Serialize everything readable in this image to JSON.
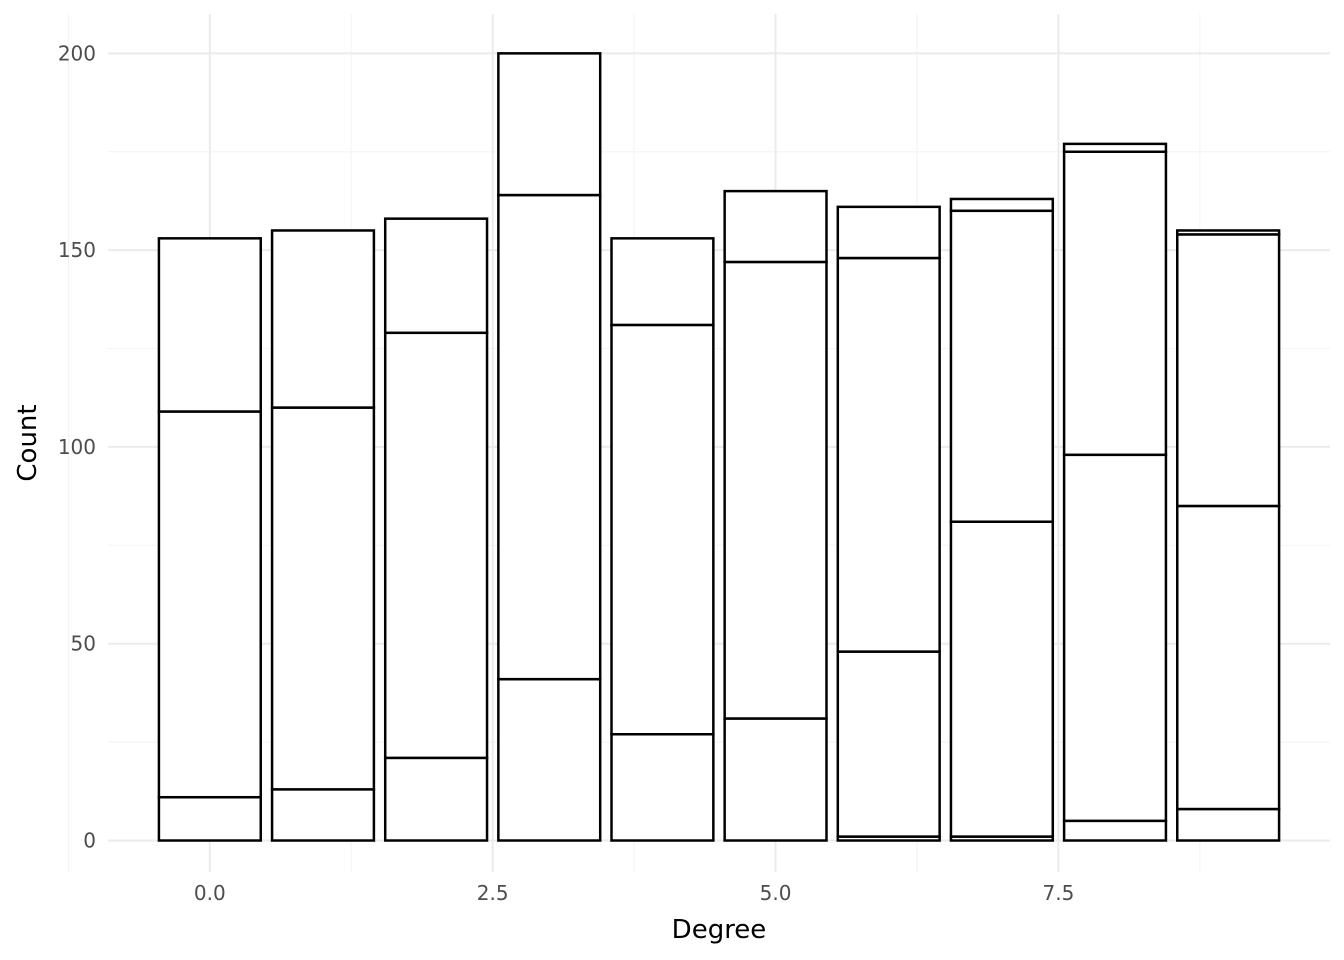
{
  "chart_data": {
    "type": "bar",
    "stacked": true,
    "xlabel": "Degree",
    "ylabel": "Count",
    "xlim": [
      -0.9,
      9.9
    ],
    "ylim": [
      -8,
      210
    ],
    "x_ticks": [
      0,
      2.5,
      5,
      7.5
    ],
    "x_tick_labels": [
      "0.0",
      "2.5",
      "5.0",
      "7.5"
    ],
    "y_ticks": [
      0,
      50,
      100,
      150,
      200
    ],
    "y_tick_labels": [
      "0",
      "50",
      "100",
      "150",
      "200"
    ],
    "bar_width": 0.9,
    "fill_color": "#ffffff",
    "outline_color": "#000000",
    "grid": true,
    "x": [
      0,
      1,
      2,
      3,
      4,
      5,
      6,
      7,
      8,
      9
    ],
    "stack_boundaries": [
      [
        11,
        109,
        153
      ],
      [
        13,
        110,
        155
      ],
      [
        21,
        129,
        158
      ],
      [
        41,
        164,
        200
      ],
      [
        27,
        131,
        153
      ],
      [
        31,
        147,
        165
      ],
      [
        1,
        48,
        148,
        161
      ],
      [
        1,
        81,
        160,
        163
      ],
      [
        5,
        98,
        175,
        177
      ],
      [
        8,
        85,
        154,
        155
      ]
    ]
  }
}
